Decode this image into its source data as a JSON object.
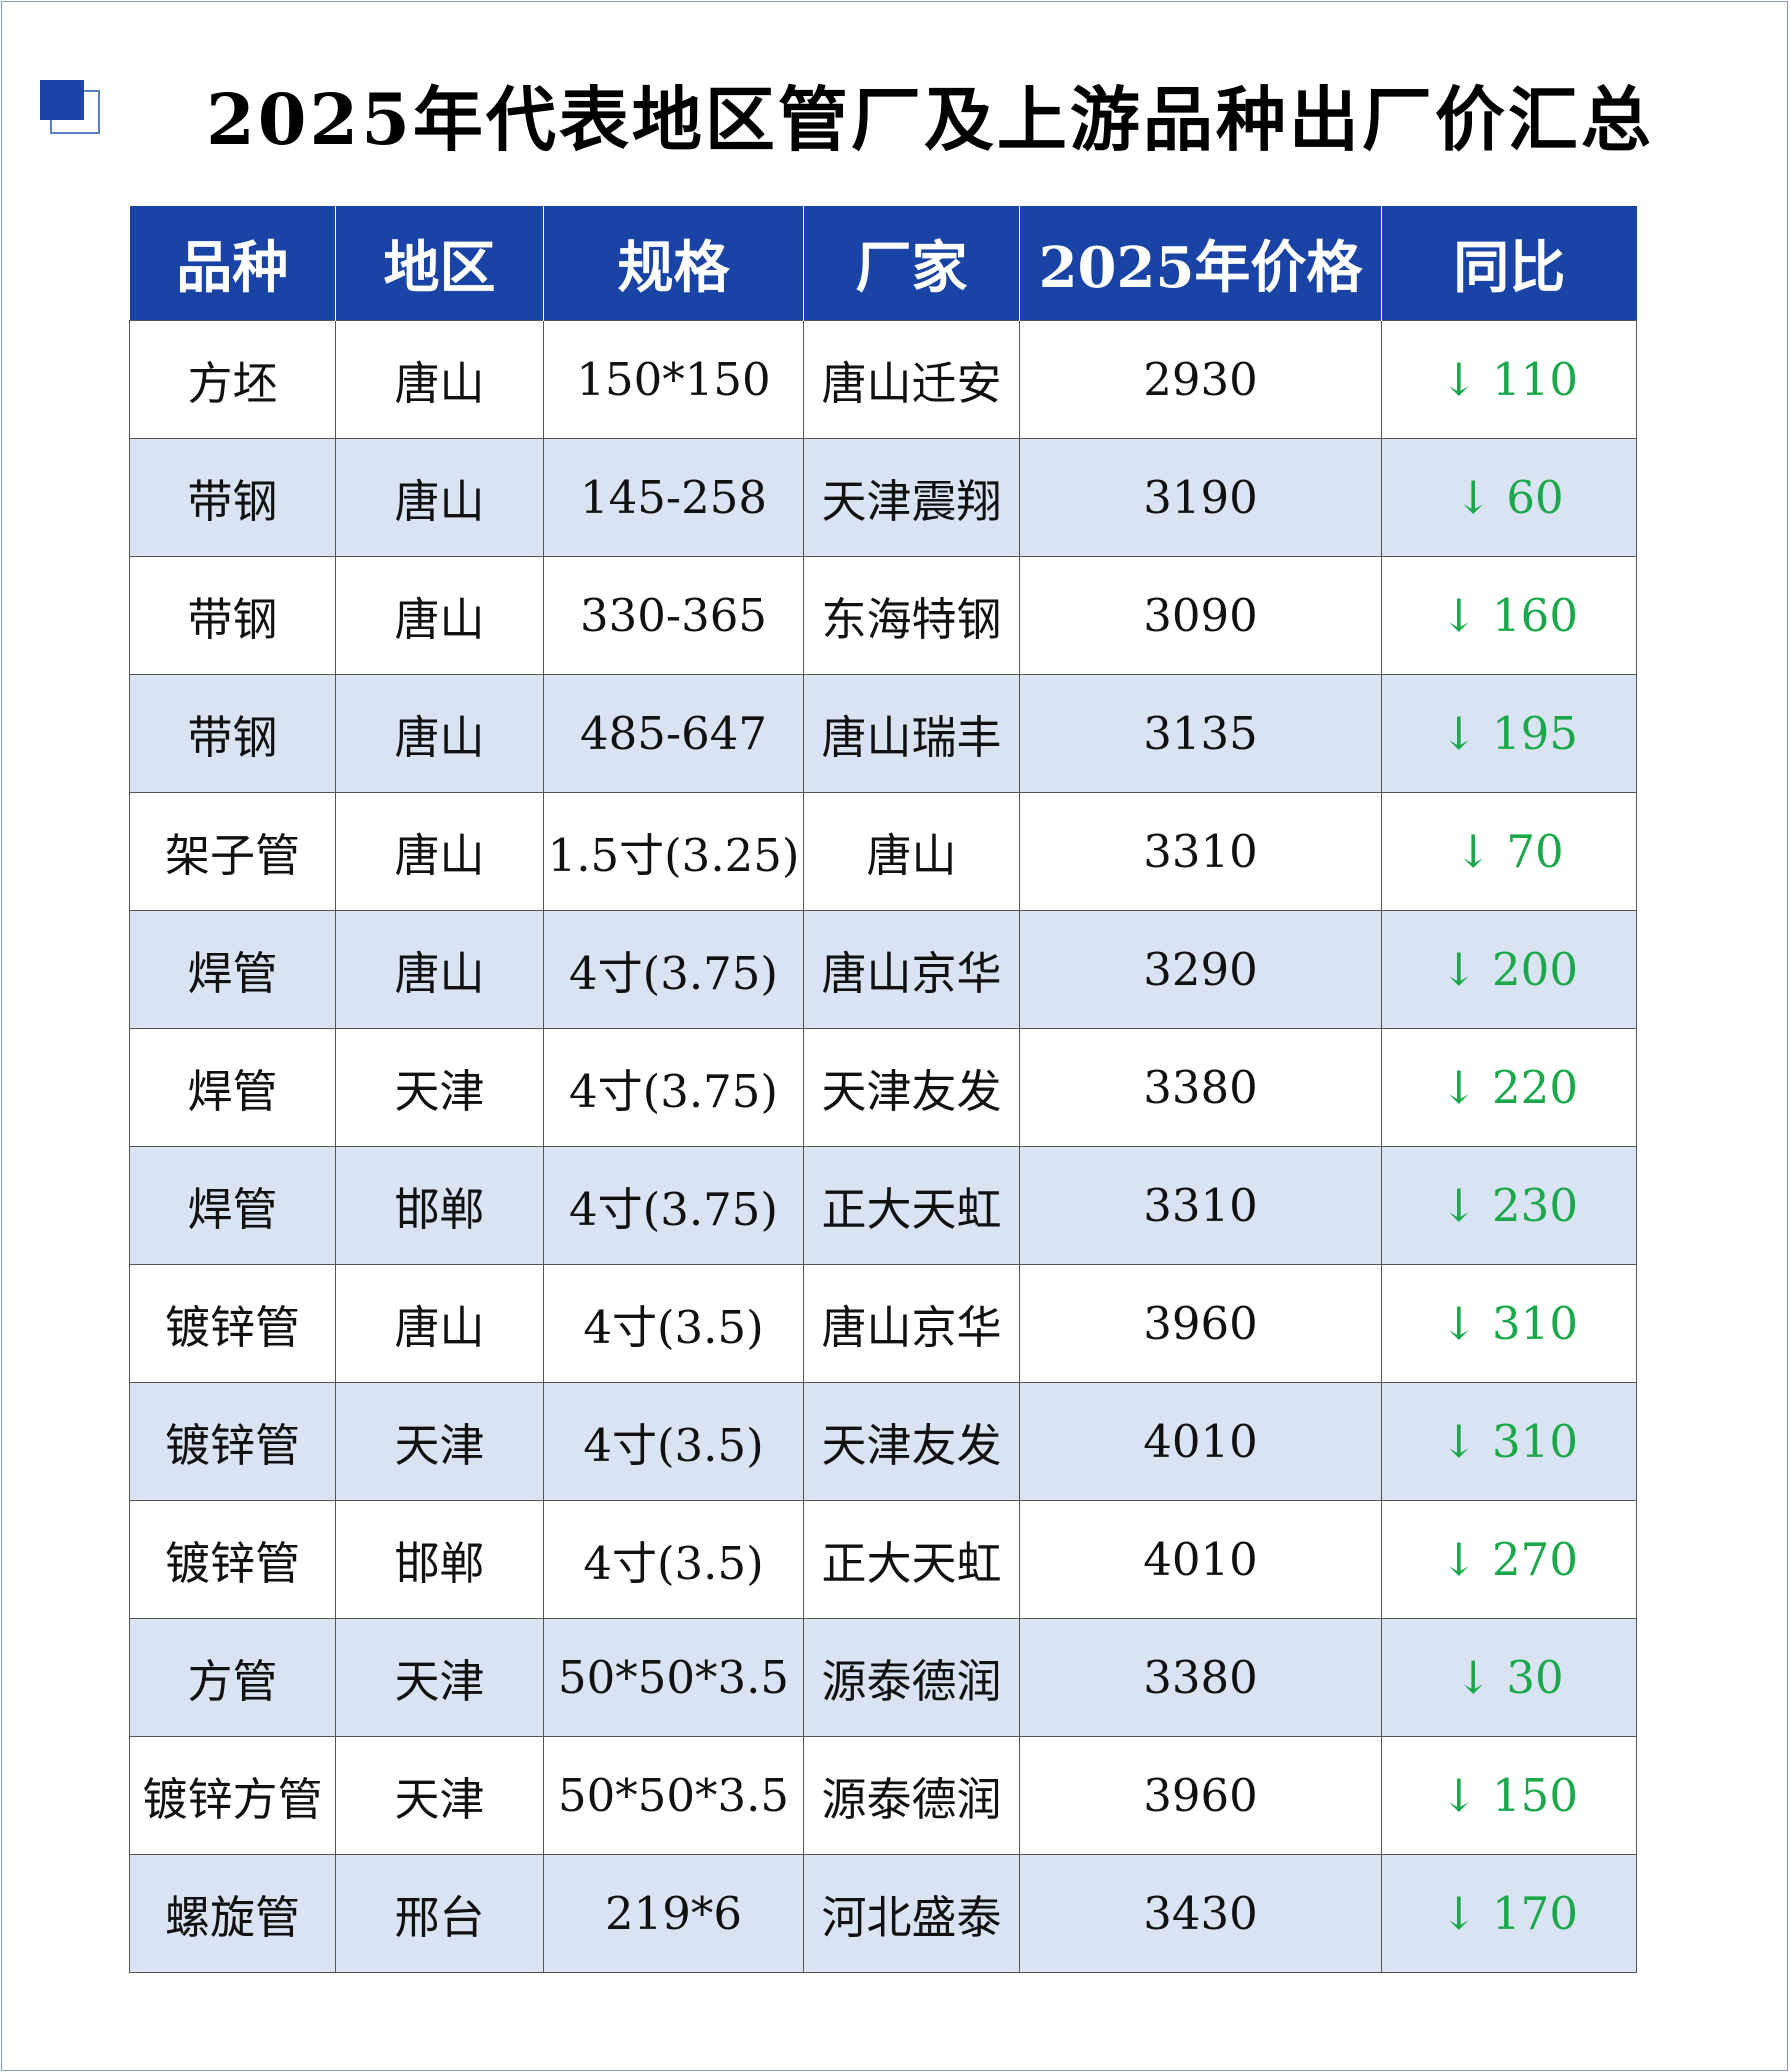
{
  "title": "2025年代表地区管厂及上游品种出厂价汇总",
  "colors": {
    "header_bg": "#1a43a6",
    "stripe_bg": "#dae3f2",
    "down_color": "#1aa84a"
  },
  "table": {
    "headers": [
      "品种",
      "地区",
      "规格",
      "厂家",
      "2025年价格",
      "同比"
    ],
    "rows": [
      [
        "方坯",
        "唐山",
        "150*150",
        "唐山迁安",
        "2930",
        "↓ 110"
      ],
      [
        "带钢",
        "唐山",
        "145-258",
        "天津震翔",
        "3190",
        "↓ 60"
      ],
      [
        "带钢",
        "唐山",
        "330-365",
        "东海特钢",
        "3090",
        "↓ 160"
      ],
      [
        "带钢",
        "唐山",
        "485-647",
        "唐山瑞丰",
        "3135",
        "↓ 195"
      ],
      [
        "架子管",
        "唐山",
        "1.5寸(3.25)",
        "唐山",
        "3310",
        "↓ 70"
      ],
      [
        "焊管",
        "唐山",
        "4寸(3.75)",
        "唐山京华",
        "3290",
        "↓ 200"
      ],
      [
        "焊管",
        "天津",
        "4寸(3.75)",
        "天津友发",
        "3380",
        "↓ 220"
      ],
      [
        "焊管",
        "邯郸",
        "4寸(3.75)",
        "正大天虹",
        "3310",
        "↓ 230"
      ],
      [
        "镀锌管",
        "唐山",
        "4寸(3.5)",
        "唐山京华",
        "3960",
        "↓ 310"
      ],
      [
        "镀锌管",
        "天津",
        "4寸(3.5)",
        "天津友发",
        "4010",
        "↓ 310"
      ],
      [
        "镀锌管",
        "邯郸",
        "4寸(3.5)",
        "正大天虹",
        "4010",
        "↓ 270"
      ],
      [
        "方管",
        "天津",
        "50*50*3.5",
        "源泰德润",
        "3380",
        "↓ 30"
      ],
      [
        "镀锌方管",
        "天津",
        "50*50*3.5",
        "源泰德润",
        "3960",
        "↓ 150"
      ],
      [
        "螺旋管",
        "邢台",
        "219*6",
        "河北盛泰",
        "3430",
        "↓ 170"
      ]
    ]
  }
}
